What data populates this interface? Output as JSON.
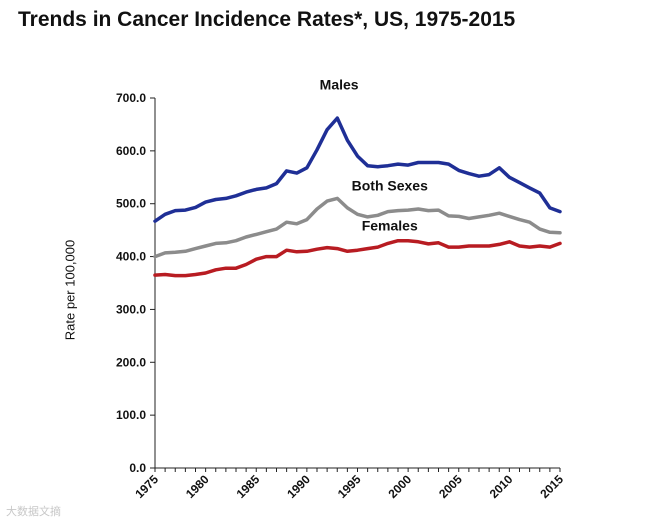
{
  "watermark": "大数据文摘",
  "chart_data": {
    "type": "line",
    "title": "Trends in Cancer Incidence Rates*, US, 1975-2015",
    "xlabel": "",
    "ylabel": "Rate per 100,000",
    "ylim": [
      0,
      700
    ],
    "yticks": [
      "0.0",
      "100.0",
      "200.0",
      "300.0",
      "400.0",
      "500.0",
      "600.0",
      "700.0"
    ],
    "yticks_values": [
      0,
      100,
      200,
      300,
      400,
      500,
      600,
      700
    ],
    "xlim": [
      1975,
      2015
    ],
    "xticks": [
      "1975",
      "1980",
      "1985",
      "1990",
      "1995",
      "2000",
      "2005",
      "2010",
      "2015"
    ],
    "xticks_values": [
      1975,
      1980,
      1985,
      1990,
      1995,
      2000,
      2005,
      2010,
      2015
    ],
    "grid": false,
    "legend": "inline labels",
    "x": [
      1975,
      1976,
      1977,
      1978,
      1979,
      1980,
      1981,
      1982,
      1983,
      1984,
      1985,
      1986,
      1987,
      1988,
      1989,
      1990,
      1991,
      1992,
      1993,
      1994,
      1995,
      1996,
      1997,
      1998,
      1999,
      2000,
      2001,
      2002,
      2003,
      2004,
      2005,
      2006,
      2007,
      2008,
      2009,
      2010,
      2011,
      2012,
      2013,
      2014,
      2015
    ],
    "series": [
      {
        "name": "Males",
        "color": "#1f2f96",
        "values": [
          467,
          480,
          487,
          488,
          493,
          503,
          508,
          510,
          515,
          522,
          527,
          530,
          538,
          562,
          558,
          568,
          602,
          640,
          662,
          620,
          590,
          572,
          570,
          572,
          575,
          573,
          578,
          578,
          578,
          575,
          563,
          557,
          552,
          555,
          568,
          550,
          540,
          530,
          520,
          492,
          485
        ]
      },
      {
        "name": "Both Sexes",
        "color": "#8c8c8c",
        "values": [
          400,
          407,
          408,
          410,
          415,
          420,
          425,
          426,
          430,
          437,
          442,
          447,
          452,
          465,
          462,
          470,
          490,
          505,
          510,
          492,
          480,
          475,
          478,
          485,
          487,
          488,
          490,
          487,
          488,
          477,
          476,
          472,
          475,
          478,
          482,
          476,
          470,
          465,
          452,
          446,
          445
        ]
      },
      {
        "name": "Females",
        "color": "#b81c22",
        "values": [
          365,
          366,
          364,
          364,
          366,
          369,
          375,
          378,
          378,
          385,
          395,
          400,
          400,
          412,
          409,
          410,
          414,
          417,
          415,
          410,
          412,
          415,
          418,
          425,
          430,
          430,
          428,
          424,
          426,
          418,
          418,
          420,
          420,
          420,
          423,
          428,
          420,
          418,
          420,
          418,
          425
        ]
      }
    ],
    "labels": [
      {
        "text": "Males",
        "series": "Males"
      },
      {
        "text": "Both Sexes",
        "series": "Both Sexes"
      },
      {
        "text": "Females",
        "series": "Females"
      }
    ]
  }
}
